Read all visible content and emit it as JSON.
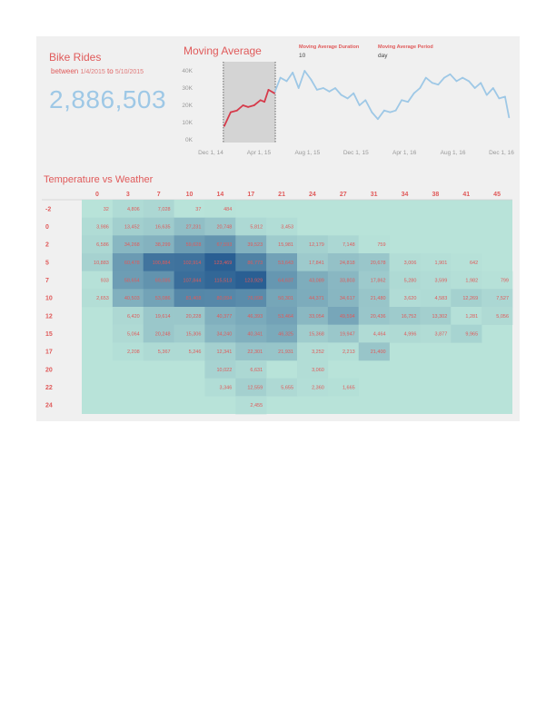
{
  "header": {
    "title": "Bike Rides",
    "between_label": "between",
    "start_date": "1/4/2015",
    "to_label": "to",
    "end_date": "5/10/2015",
    "total_rides": "2,886,503"
  },
  "moving_average": {
    "title": "Moving Average",
    "duration_label": "Moving Average Duration",
    "duration_value": "10",
    "period_label": "Moving Average Period",
    "period_value": "day"
  },
  "heatmap_title": "Temperature vs Weather",
  "colors": {
    "accent": "#e05a5a",
    "big_number": "#9ec8e6",
    "line_selected": "#d63b4b",
    "line": "#9ec8e6",
    "selection_band": "#d4d4d4",
    "heat_low": "#b8e3d9",
    "heat_high": "#2a5f93"
  },
  "chart_data": [
    {
      "type": "line",
      "title": "Moving Average",
      "y_ticks": [
        "0K",
        "10K",
        "20K",
        "30K",
        "40K"
      ],
      "x_ticks": [
        "Dec 1, 14",
        "Apr 1, 15",
        "Aug 1, 15",
        "Dec 1, 15",
        "Apr 1, 16",
        "Aug 1, 16",
        "Dec 1, 16"
      ],
      "x_tick_dates": [
        "2014-12-01",
        "2015-04-01",
        "2015-08-01",
        "2015-12-01",
        "2016-04-01",
        "2016-08-01",
        "2016-12-01"
      ],
      "ylim": [
        0,
        40000
      ],
      "selection": [
        "2015-01-04",
        "2015-05-10"
      ],
      "x": [
        "2015-01-04",
        "2015-01-20",
        "2015-02-05",
        "2015-02-20",
        "2015-03-05",
        "2015-03-20",
        "2015-04-05",
        "2015-04-15",
        "2015-04-25",
        "2015-05-10",
        "2015-05-25",
        "2015-06-10",
        "2015-06-25",
        "2015-07-10",
        "2015-07-25",
        "2015-08-10",
        "2015-08-25",
        "2015-09-10",
        "2015-09-25",
        "2015-10-10",
        "2015-10-25",
        "2015-11-10",
        "2015-11-25",
        "2015-12-10",
        "2015-12-25",
        "2016-01-10",
        "2016-01-25",
        "2016-02-10",
        "2016-02-25",
        "2016-03-10",
        "2016-03-25",
        "2016-04-10",
        "2016-04-25",
        "2016-05-10",
        "2016-05-25",
        "2016-06-10",
        "2016-06-25",
        "2016-07-10",
        "2016-07-25",
        "2016-08-10",
        "2016-08-25",
        "2016-09-10",
        "2016-09-25",
        "2016-10-10",
        "2016-10-25",
        "2016-11-10",
        "2016-11-25",
        "2016-12-10",
        "2016-12-20"
      ],
      "y": [
        8000,
        16000,
        17000,
        20000,
        19000,
        20000,
        23000,
        22000,
        29000,
        27000,
        36000,
        34000,
        39000,
        30000,
        40000,
        35000,
        29000,
        30000,
        28000,
        30000,
        26000,
        24000,
        27000,
        20000,
        23000,
        16000,
        12000,
        17000,
        16000,
        17000,
        23000,
        22000,
        27000,
        30000,
        36000,
        33000,
        32000,
        36000,
        38000,
        34000,
        36000,
        34000,
        30000,
        33000,
        26000,
        30000,
        24000,
        25000,
        13000
      ]
    },
    {
      "type": "heatmap",
      "title": "Temperature vs Weather",
      "columns": [
        "0",
        "3",
        "7",
        "10",
        "14",
        "17",
        "21",
        "24",
        "27",
        "31",
        "34",
        "38",
        "41",
        "45"
      ],
      "rows": [
        "-2",
        "0",
        "2",
        "5",
        "7",
        "10",
        "12",
        "15",
        "17",
        "20",
        "22",
        "24"
      ],
      "values": [
        [
          32,
          4806,
          7028,
          37,
          484,
          null,
          null,
          null,
          null,
          null,
          null,
          null,
          null,
          null
        ],
        [
          3986,
          13452,
          16635,
          27231,
          20748,
          5812,
          3453,
          null,
          null,
          null,
          null,
          null,
          null,
          null
        ],
        [
          6586,
          34268,
          38299,
          59628,
          67593,
          39523,
          15981,
          12179,
          7148,
          759,
          null,
          null,
          null,
          null
        ],
        [
          10883,
          60478,
          100884,
          102914,
          123469,
          86773,
          53643,
          17841,
          24818,
          20678,
          3006,
          1901,
          642,
          null
        ],
        [
          933,
          58654,
          69085,
          107844,
          115513,
          123929,
          64637,
          43089,
          33803,
          17862,
          5280,
          3599,
          1982,
          799
        ],
        [
          2653,
          40503,
          53086,
          81408,
          80094,
          76098,
          50301,
          44371,
          34617,
          21480,
          3620,
          4583,
          12269,
          7527
        ],
        [
          null,
          6420,
          19614,
          20228,
          40377,
          46393,
          53464,
          33054,
          49594,
          20436,
          16752,
          13302,
          1281,
          5056
        ],
        [
          null,
          5064,
          20248,
          15306,
          34240,
          40341,
          46325,
          15368,
          19947,
          4464,
          4996,
          3877,
          9965,
          null
        ],
        [
          null,
          2208,
          5367,
          5246,
          12341,
          22301,
          21931,
          3252,
          2213,
          21400,
          null,
          null,
          null,
          null
        ],
        [
          null,
          null,
          null,
          null,
          10022,
          6631,
          null,
          3060,
          null,
          null,
          null,
          null,
          null,
          null
        ],
        [
          null,
          null,
          null,
          null,
          3346,
          12559,
          5655,
          2360,
          1665,
          null,
          null,
          null,
          null,
          null
        ],
        [
          null,
          null,
          null,
          null,
          null,
          2455,
          null,
          null,
          null,
          null,
          null,
          null,
          null,
          null
        ]
      ]
    }
  ]
}
